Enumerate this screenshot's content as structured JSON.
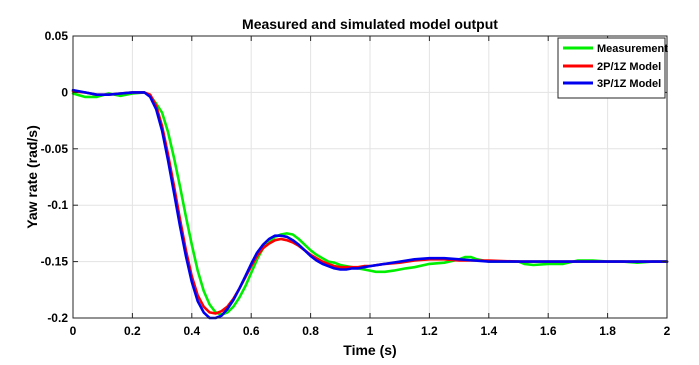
{
  "chart_data": {
    "type": "line",
    "title": "Measured and simulated model output",
    "xlabel": "Time (s)",
    "ylabel": "Yaw rate (rad/s)",
    "xlim": [
      0,
      2
    ],
    "ylim": [
      -0.2,
      0.05
    ],
    "xticks": [
      0,
      0.2,
      0.4,
      0.6,
      0.8,
      1,
      1.2,
      1.4,
      1.6,
      1.8,
      2
    ],
    "xtick_labels": [
      "0",
      "0.2",
      "0.4",
      "0.6",
      "0.8",
      "1",
      "1.2",
      "1.4",
      "1.6",
      "1.8",
      "2"
    ],
    "yticks": [
      0.05,
      0,
      -0.05,
      -0.1,
      -0.15,
      -0.2
    ],
    "ytick_labels": [
      "0.05",
      "0",
      "-0.05",
      "-0.1",
      "-0.15",
      "-0.2"
    ],
    "grid": true,
    "legend_position": "top-right",
    "series": [
      {
        "name": "Measurement",
        "color": "#00ee00",
        "x": [
          0,
          0.04,
          0.08,
          0.12,
          0.16,
          0.2,
          0.24,
          0.26,
          0.28,
          0.3,
          0.32,
          0.34,
          0.36,
          0.38,
          0.4,
          0.42,
          0.44,
          0.46,
          0.48,
          0.5,
          0.52,
          0.54,
          0.56,
          0.58,
          0.6,
          0.62,
          0.64,
          0.66,
          0.68,
          0.7,
          0.72,
          0.74,
          0.76,
          0.78,
          0.8,
          0.82,
          0.84,
          0.86,
          0.88,
          0.9,
          0.92,
          0.94,
          0.96,
          0.98,
          1,
          1.02,
          1.05,
          1.08,
          1.1,
          1.12,
          1.15,
          1.2,
          1.25,
          1.3,
          1.32,
          1.34,
          1.36,
          1.4,
          1.45,
          1.5,
          1.52,
          1.55,
          1.6,
          1.65,
          1.7,
          1.75,
          1.8,
          1.85,
          1.9,
          1.95,
          2
        ],
        "y": [
          -0.001,
          -0.004,
          -0.004,
          -0.001,
          -0.003,
          -0.001,
          0.0,
          -0.003,
          -0.01,
          -0.018,
          -0.035,
          -0.058,
          -0.083,
          -0.11,
          -0.135,
          -0.158,
          -0.176,
          -0.188,
          -0.195,
          -0.197,
          -0.195,
          -0.19,
          -0.182,
          -0.172,
          -0.16,
          -0.148,
          -0.138,
          -0.132,
          -0.128,
          -0.126,
          -0.125,
          -0.126,
          -0.13,
          -0.135,
          -0.14,
          -0.144,
          -0.147,
          -0.15,
          -0.151,
          -0.153,
          -0.154,
          -0.155,
          -0.156,
          -0.157,
          -0.158,
          -0.159,
          -0.159,
          -0.158,
          -0.157,
          -0.156,
          -0.155,
          -0.152,
          -0.151,
          -0.148,
          -0.146,
          -0.146,
          -0.148,
          -0.15,
          -0.15,
          -0.15,
          -0.152,
          -0.153,
          -0.152,
          -0.152,
          -0.149,
          -0.149,
          -0.15,
          -0.15,
          -0.151,
          -0.15,
          -0.15
        ]
      },
      {
        "name": "2P/1Z Model",
        "color": "#ff0000",
        "x": [
          0,
          0.04,
          0.08,
          0.12,
          0.16,
          0.2,
          0.24,
          0.26,
          0.28,
          0.3,
          0.32,
          0.34,
          0.36,
          0.38,
          0.4,
          0.42,
          0.44,
          0.46,
          0.48,
          0.5,
          0.52,
          0.54,
          0.56,
          0.58,
          0.6,
          0.62,
          0.64,
          0.66,
          0.68,
          0.7,
          0.72,
          0.74,
          0.76,
          0.78,
          0.8,
          0.82,
          0.84,
          0.86,
          0.88,
          0.9,
          0.92,
          0.94,
          0.96,
          0.98,
          1,
          1.05,
          1.1,
          1.15,
          1.2,
          1.25,
          1.3,
          1.35,
          1.4,
          1.5,
          1.6,
          1.7,
          1.8,
          1.9,
          2
        ],
        "y": [
          0.001,
          0.0,
          -0.002,
          -0.002,
          -0.001,
          0.0,
          0.0,
          -0.002,
          -0.012,
          -0.03,
          -0.055,
          -0.083,
          -0.112,
          -0.14,
          -0.163,
          -0.18,
          -0.19,
          -0.195,
          -0.196,
          -0.194,
          -0.19,
          -0.183,
          -0.174,
          -0.164,
          -0.154,
          -0.145,
          -0.138,
          -0.134,
          -0.131,
          -0.13,
          -0.131,
          -0.133,
          -0.136,
          -0.14,
          -0.144,
          -0.147,
          -0.15,
          -0.152,
          -0.154,
          -0.155,
          -0.155,
          -0.155,
          -0.155,
          -0.154,
          -0.154,
          -0.152,
          -0.151,
          -0.149,
          -0.148,
          -0.148,
          -0.149,
          -0.149,
          -0.149,
          -0.15,
          -0.15,
          -0.15,
          -0.15,
          -0.15,
          -0.15
        ]
      },
      {
        "name": "3P/1Z Model",
        "color": "#0000ee",
        "x": [
          0,
          0.04,
          0.08,
          0.12,
          0.16,
          0.2,
          0.24,
          0.26,
          0.28,
          0.3,
          0.32,
          0.34,
          0.36,
          0.38,
          0.4,
          0.42,
          0.44,
          0.46,
          0.48,
          0.5,
          0.52,
          0.54,
          0.56,
          0.58,
          0.6,
          0.62,
          0.64,
          0.66,
          0.68,
          0.7,
          0.72,
          0.74,
          0.76,
          0.78,
          0.8,
          0.82,
          0.84,
          0.86,
          0.88,
          0.9,
          0.92,
          0.94,
          0.96,
          0.98,
          1,
          1.05,
          1.1,
          1.15,
          1.2,
          1.25,
          1.3,
          1.35,
          1.4,
          1.5,
          1.6,
          1.7,
          1.8,
          1.9,
          2
        ],
        "y": [
          0.002,
          0.0,
          -0.002,
          -0.002,
          -0.001,
          0.0,
          0.0,
          -0.004,
          -0.015,
          -0.034,
          -0.06,
          -0.089,
          -0.118,
          -0.145,
          -0.168,
          -0.185,
          -0.195,
          -0.2,
          -0.2,
          -0.198,
          -0.192,
          -0.184,
          -0.174,
          -0.163,
          -0.152,
          -0.142,
          -0.135,
          -0.13,
          -0.127,
          -0.127,
          -0.128,
          -0.131,
          -0.135,
          -0.14,
          -0.145,
          -0.149,
          -0.152,
          -0.154,
          -0.156,
          -0.157,
          -0.157,
          -0.156,
          -0.156,
          -0.155,
          -0.154,
          -0.152,
          -0.15,
          -0.148,
          -0.147,
          -0.147,
          -0.148,
          -0.149,
          -0.15,
          -0.15,
          -0.15,
          -0.15,
          -0.15,
          -0.15,
          -0.15
        ]
      }
    ]
  }
}
